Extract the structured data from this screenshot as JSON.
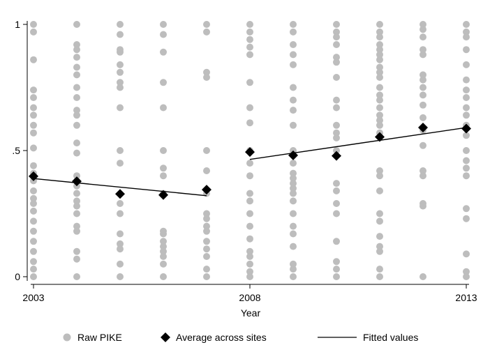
{
  "chart_data": {
    "type": "scatter",
    "title": "",
    "xlabel": "Year",
    "ylabel": "",
    "xlim": [
      2003,
      2013
    ],
    "ylim": [
      0,
      1
    ],
    "x_ticks": [
      {
        "value": 2003,
        "label": "2003"
      },
      {
        "value": 2008,
        "label": "2008"
      },
      {
        "value": 2013,
        "label": "2013"
      }
    ],
    "y_ticks": [
      {
        "value": 0,
        "label": "0"
      },
      {
        "value": 0.5,
        "label": ".5"
      },
      {
        "value": 1,
        "label": "1"
      }
    ],
    "grid": false,
    "legend_position": "bottom",
    "colors": {
      "raw": "#bdbdbd",
      "average": "#000000",
      "fitted": "#000000"
    },
    "series": [
      {
        "name": "Raw PIKE",
        "type": "scatter",
        "points": [
          {
            "year": 2003,
            "values": [
              1,
              0.97,
              0.86,
              0.74,
              0.71,
              0.67,
              0.64,
              0.6,
              0.57,
              0.51,
              0.44,
              0.41,
              0.38,
              0.34,
              0.31,
              0.29,
              0.26,
              0.22,
              0.18,
              0.14,
              0.1,
              0.06,
              0.03,
              0
            ]
          },
          {
            "year": 2004,
            "values": [
              1,
              0.92,
              0.9,
              0.87,
              0.83,
              0.8,
              0.75,
              0.71,
              0.66,
              0.64,
              0.6,
              0.53,
              0.49,
              0.4,
              0.38,
              0.36,
              0.33,
              0.3,
              0.28,
              0.25,
              0.2,
              0.18,
              0.1,
              0.07,
              0
            ]
          },
          {
            "year": 2005,
            "values": [
              1,
              0.96,
              0.9,
              0.89,
              0.84,
              0.81,
              0.77,
              0.75,
              0.67,
              0.5,
              0.45,
              0.29,
              0.25,
              0.17,
              0.13,
              0.11,
              0.05,
              0
            ]
          },
          {
            "year": 2006,
            "values": [
              1,
              0.96,
              0.89,
              0.77,
              0.67,
              0.5,
              0.43,
              0.4,
              0.33,
              0.18,
              0.17,
              0.14,
              0.12,
              0.1,
              0.08,
              0.05,
              0
            ]
          },
          {
            "year": 2007,
            "values": [
              1,
              0.97,
              0.81,
              0.79,
              0.5,
              0.42,
              0.33,
              0.25,
              0.23,
              0.2,
              0.18,
              0.14,
              0.11,
              0.08,
              0.03,
              0
            ]
          },
          {
            "year": 2008,
            "values": [
              1,
              0.97,
              0.94,
              0.91,
              0.88,
              0.77,
              0.67,
              0.61,
              0.5,
              0.45,
              0.4,
              0.33,
              0.3,
              0.25,
              0.2,
              0.15,
              0.1,
              0.08,
              0.05,
              0.02,
              0
            ]
          },
          {
            "year": 2009,
            "values": [
              1,
              0.97,
              0.92,
              0.88,
              0.84,
              0.75,
              0.7,
              0.66,
              0.6,
              0.5,
              0.45,
              0.41,
              0.39,
              0.37,
              0.35,
              0.33,
              0.3,
              0.25,
              0.2,
              0.17,
              0.12,
              0.05,
              0.03,
              0
            ]
          },
          {
            "year": 2010,
            "values": [
              1,
              0.97,
              0.95,
              0.92,
              0.87,
              0.85,
              0.79,
              0.7,
              0.67,
              0.6,
              0.57,
              0.55,
              0.5,
              0.37,
              0.34,
              0.29,
              0.25,
              0.14,
              0.06,
              0.03,
              0
            ]
          },
          {
            "year": 2011,
            "values": [
              1,
              0.97,
              0.95,
              0.92,
              0.9,
              0.88,
              0.86,
              0.83,
              0.81,
              0.79,
              0.75,
              0.72,
              0.7,
              0.67,
              0.64,
              0.62,
              0.6,
              0.57,
              0.42,
              0.4,
              0.34,
              0.25,
              0.22,
              0.16,
              0.12,
              0.1,
              0.03,
              0
            ]
          },
          {
            "year": 2012,
            "values": [
              1,
              0.98,
              0.95,
              0.9,
              0.88,
              0.8,
              0.78,
              0.75,
              0.72,
              0.68,
              0.63,
              0.58,
              0.52,
              0.42,
              0.4,
              0.29,
              0.28,
              0
            ]
          },
          {
            "year": 2013,
            "values": [
              1,
              0.97,
              0.95,
              0.9,
              0.84,
              0.78,
              0.74,
              0.71,
              0.67,
              0.64,
              0.6,
              0.56,
              0.5,
              0.46,
              0.43,
              0.4,
              0.27,
              0.23,
              0.09,
              0.02,
              0
            ]
          }
        ]
      },
      {
        "name": "Average across sites",
        "type": "scatter",
        "x": [
          2003,
          2004,
          2005,
          2006,
          2007,
          2008,
          2009,
          2010,
          2011,
          2012,
          2013
        ],
        "y": [
          0.398,
          0.378,
          0.328,
          0.324,
          0.345,
          0.494,
          0.481,
          0.479,
          0.554,
          0.591,
          0.587
        ]
      },
      {
        "name": "Fitted values",
        "type": "line",
        "segments": [
          {
            "x": [
              2003,
              2007
            ],
            "y": [
              0.389,
              0.321
            ]
          },
          {
            "x": [
              2008,
              2013
            ],
            "y": [
              0.465,
              0.591
            ]
          }
        ]
      }
    ]
  }
}
